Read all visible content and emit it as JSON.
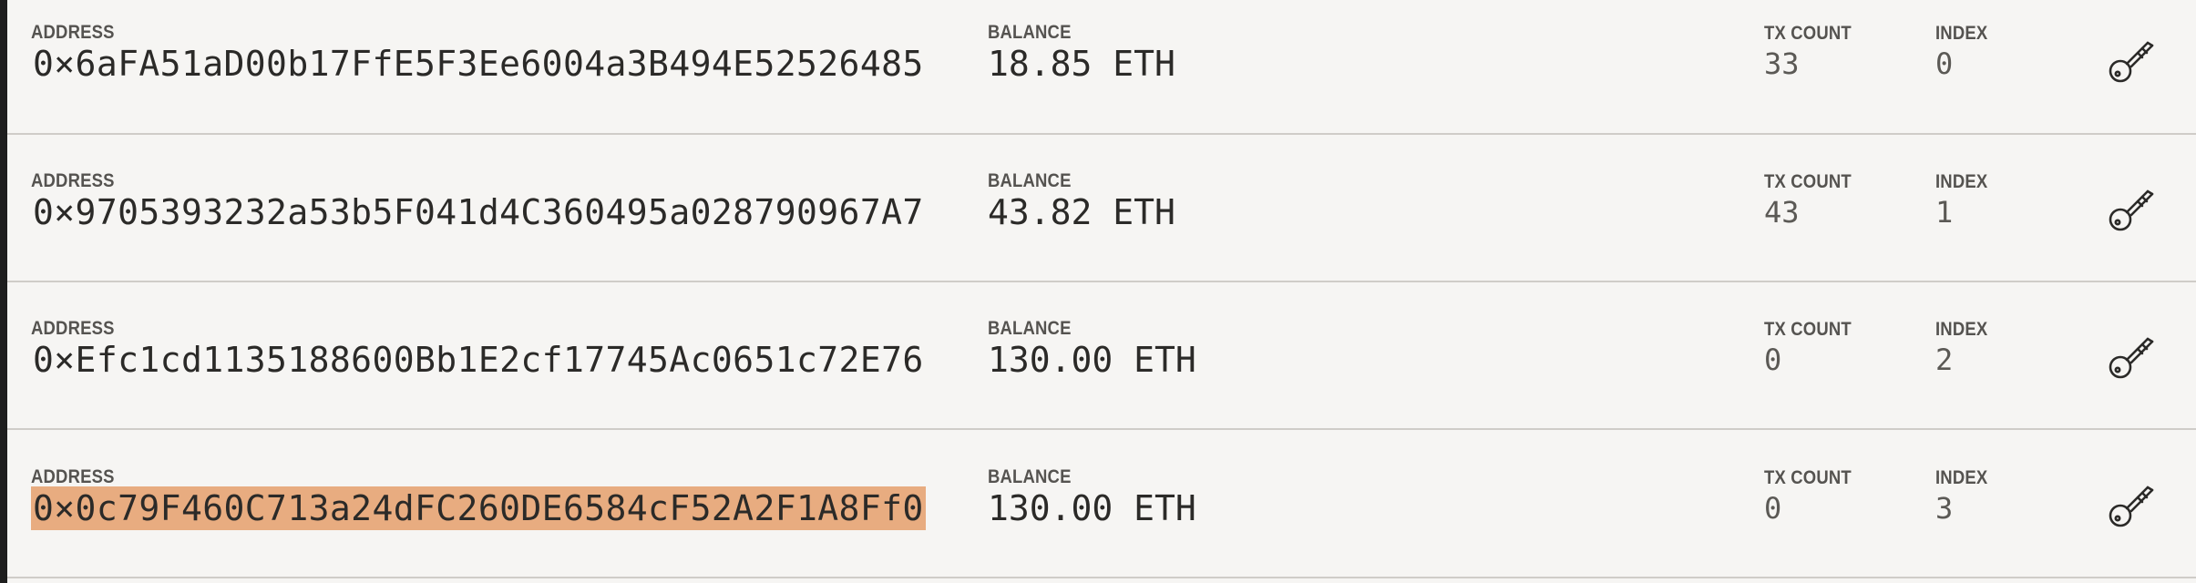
{
  "accounts": [
    {
      "address_label": "ADDRESS",
      "address": "0×6aFA51aD00b17FfE5F3Ee6004a3B494E52526485",
      "balance_label": "BALANCE",
      "balance": "18.85 ETH",
      "tx_count_label": "TX COUNT",
      "tx_count": "33",
      "index_label": "INDEX",
      "index": "0",
      "key_icon": "key-icon"
    },
    {
      "address_label": "ADDRESS",
      "address": "0×9705393232a53b5F041d4C360495a028790967A7",
      "balance_label": "BALANCE",
      "balance": "43.82 ETH",
      "tx_count_label": "TX COUNT",
      "tx_count": "43",
      "index_label": "INDEX",
      "index": "1",
      "key_icon": "key-icon"
    },
    {
      "address_label": "ADDRESS",
      "address": "0×Efc1cd1135188600Bb1E2cf17745Ac0651c72E76",
      "balance_label": "BALANCE",
      "balance": "130.00 ETH",
      "tx_count_label": "TX COUNT",
      "tx_count": "0",
      "index_label": "INDEX",
      "index": "2",
      "key_icon": "key-icon"
    },
    {
      "address_label": "ADDRESS",
      "address": "0×0c79F460C713a24dFC260DE6584cF52A2F1A8Ff0",
      "address_selected": true,
      "balance_label": "BALANCE",
      "balance": "130.00 ETH",
      "tx_count_label": "TX COUNT",
      "tx_count": "0",
      "index_label": "INDEX",
      "index": "3",
      "key_icon": "key-icon"
    }
  ],
  "colors": {
    "background": "#f6f5f3",
    "selection_highlight": "#e8ac80",
    "divider": "#cfccc8",
    "label_text": "#555350",
    "value_text": "#2b2a28"
  }
}
